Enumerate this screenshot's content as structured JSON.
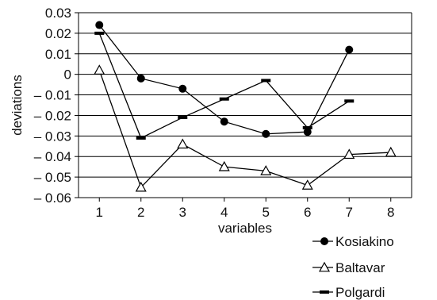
{
  "chart_data": {
    "type": "line",
    "xlabel": "variables",
    "ylabel": "deviations",
    "x": [
      1,
      2,
      3,
      4,
      5,
      6,
      7,
      8
    ],
    "x_tick_labels": [
      "1",
      "2",
      "3",
      "4",
      "5",
      "6",
      "7",
      "8"
    ],
    "ylim": [
      -0.06,
      0.03
    ],
    "y_ticks": [
      0.03,
      0.02,
      0.01,
      0,
      -0.01,
      -0.02,
      -0.03,
      -0.04,
      -0.05,
      -0.06
    ],
    "y_tick_labels": [
      "0.03",
      "0.02",
      "0.01",
      "0",
      "– 0.01",
      "– 0.02",
      "– 0.03",
      "– 0.04",
      "– 0.05",
      "– 0.06"
    ],
    "grid": "horizontal",
    "legend_position": "bottom-right",
    "series": [
      {
        "name": "Kosiakino",
        "marker": "circle",
        "x": [
          1,
          2,
          3,
          4,
          5,
          6,
          7
        ],
        "values": [
          0.024,
          -0.002,
          -0.007,
          -0.023,
          -0.029,
          -0.028,
          0.012
        ]
      },
      {
        "name": "Baltavar",
        "marker": "triangle",
        "x": [
          1,
          2,
          3,
          4,
          5,
          6,
          7,
          8
        ],
        "values": [
          0.002,
          -0.055,
          -0.034,
          -0.045,
          -0.047,
          -0.054,
          -0.039,
          -0.038
        ]
      },
      {
        "name": "Polgardi",
        "marker": "dash",
        "x": [
          1,
          2,
          3,
          4,
          5,
          6,
          7
        ],
        "values": [
          0.02,
          -0.031,
          -0.021,
          -0.012,
          -0.003,
          -0.026,
          -0.013
        ]
      }
    ]
  }
}
